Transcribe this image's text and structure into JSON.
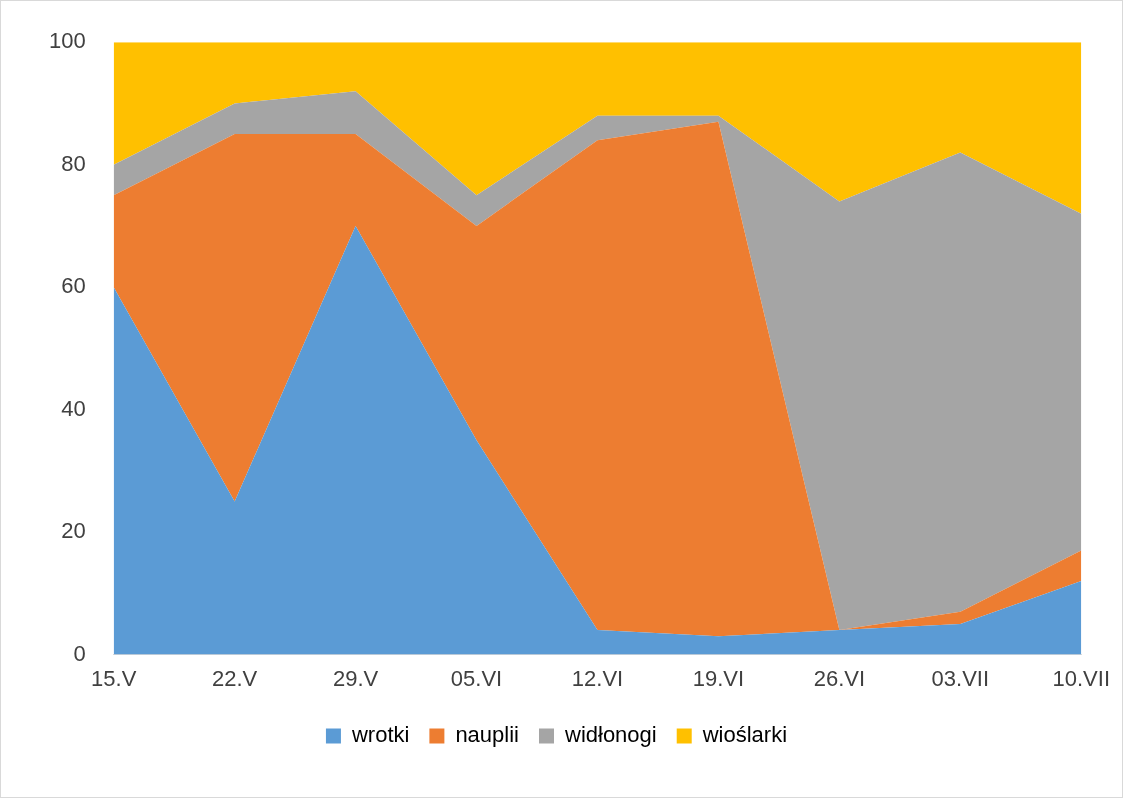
{
  "chart_data": {
    "type": "area",
    "stacked": true,
    "categories": [
      "15.V",
      "22.V",
      "29.V",
      "05.VI",
      "12.VI",
      "19.VI",
      "26.VI",
      "03.VII",
      "10.VII"
    ],
    "series": [
      {
        "name": "wrotki",
        "color": "#5b9bd5",
        "values": [
          60,
          25,
          70,
          35,
          4,
          3,
          4,
          5,
          12
        ]
      },
      {
        "name": "nauplii",
        "color": "#ed7d31",
        "values": [
          15,
          60,
          15,
          35,
          80,
          84,
          0,
          2,
          5
        ]
      },
      {
        "name": "widłonogi",
        "color": "#a5a5a5",
        "values": [
          5,
          5,
          7,
          5,
          4,
          1,
          70,
          75,
          55
        ]
      },
      {
        "name": "wioślarki",
        "color": "#ffc000",
        "values": [
          20,
          10,
          8,
          25,
          12,
          12,
          26,
          18,
          28
        ]
      }
    ],
    "ylim": [
      0,
      100
    ],
    "yticks": [
      0,
      20,
      40,
      60,
      80,
      100
    ],
    "legend": "bottom"
  }
}
